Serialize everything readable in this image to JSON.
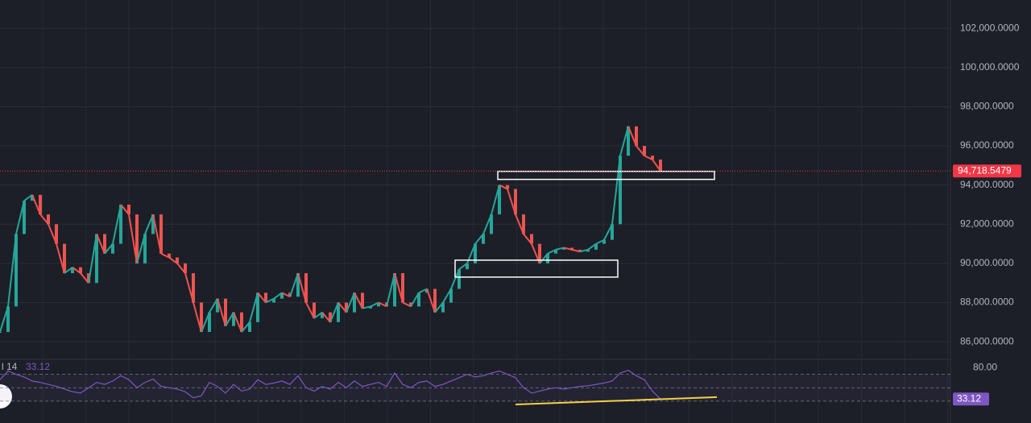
{
  "chart_data": {
    "type": "line",
    "color_up": "#26a69a",
    "color_down": "#ef5350",
    "xlim": [
      0,
      118
    ],
    "ylim": [
      85100,
      103450
    ],
    "yticks": [
      {
        "value": 86000,
        "label": "86,000.0000"
      },
      {
        "value": 88000,
        "label": "88,000.0000"
      },
      {
        "value": 90000,
        "label": "90,000.0000"
      },
      {
        "value": 92000,
        "label": "92,000.0000"
      },
      {
        "value": 94000,
        "label": "94,000.0000"
      },
      {
        "value": 96000,
        "label": "96,000.0000"
      },
      {
        "value": 98000,
        "label": "98,000.0000"
      },
      {
        "value": 100000,
        "label": "100,000.0000"
      },
      {
        "value": 102000,
        "label": "102,000.0000"
      }
    ],
    "grid": true,
    "values": [
      86500,
      87800,
      91500,
      93200,
      93500,
      92500,
      92000,
      91000,
      89500,
      89800,
      89500,
      89000,
      91500,
      90500,
      91000,
      93000,
      92500,
      90000,
      91500,
      92500,
      90500,
      90300,
      90000,
      89500,
      88000,
      86500,
      87500,
      88200,
      86800,
      87500,
      86500,
      87000,
      88500,
      88000,
      88200,
      88500,
      88300,
      89500,
      88000,
      87200,
      87500,
      87000,
      88000,
      87500,
      88500,
      87700,
      87800,
      88000,
      87800,
      89500,
      88000,
      87800,
      88500,
      88700,
      87500,
      88000,
      88700,
      89700,
      90000,
      91000,
      91500,
      92500,
      94000,
      93800,
      92500,
      91500,
      91000,
      90000,
      90500,
      90700,
      90800,
      90700,
      90600,
      90700,
      91000,
      91200,
      92000,
      95500,
      97000,
      96000,
      95500,
      95300,
      94718.5479
    ],
    "current_price": {
      "value": 94718.5479,
      "label": "94,718.5479"
    },
    "current_price_color": "#f23645",
    "zones": [
      {
        "x": [
          61.8,
          88.7
        ],
        "ylim": [
          94290,
          94700
        ],
        "color": "#ffffff"
      },
      {
        "x": [
          56.5,
          76.7
        ],
        "ylim": [
          89300,
          90165
        ],
        "color": "#ffffff"
      }
    ],
    "rsi": {
      "name": "l 14",
      "color": "#7e57c2",
      "ylim": [
        13,
        90
      ],
      "yticks": [
        {
          "value": 80,
          "label": "80.00"
        }
      ],
      "levels": [
        70,
        50,
        30
      ],
      "values": [
        62,
        75,
        70,
        66,
        60,
        58,
        55,
        52,
        48,
        44,
        42,
        50,
        58,
        55,
        60,
        68,
        62,
        50,
        58,
        63,
        52,
        50,
        48,
        44,
        35,
        38,
        58,
        52,
        42,
        55,
        45,
        48,
        62,
        55,
        57,
        60,
        55,
        68,
        50,
        45,
        52,
        48,
        58,
        50,
        60,
        52,
        55,
        58,
        52,
        72,
        55,
        50,
        58,
        60,
        52,
        55,
        60,
        65,
        70,
        66,
        68,
        72,
        75,
        70,
        65,
        50,
        42,
        45,
        48,
        50,
        48,
        50,
        52,
        53,
        55,
        57,
        60,
        72,
        76,
        68,
        62,
        45,
        33.12
      ],
      "current": {
        "value": 33.12,
        "label": "33.12"
      },
      "trendline": {
        "x": [
          64,
          89
        ],
        "values": [
          25,
          36
        ],
        "color": "#f5d142"
      }
    }
  }
}
